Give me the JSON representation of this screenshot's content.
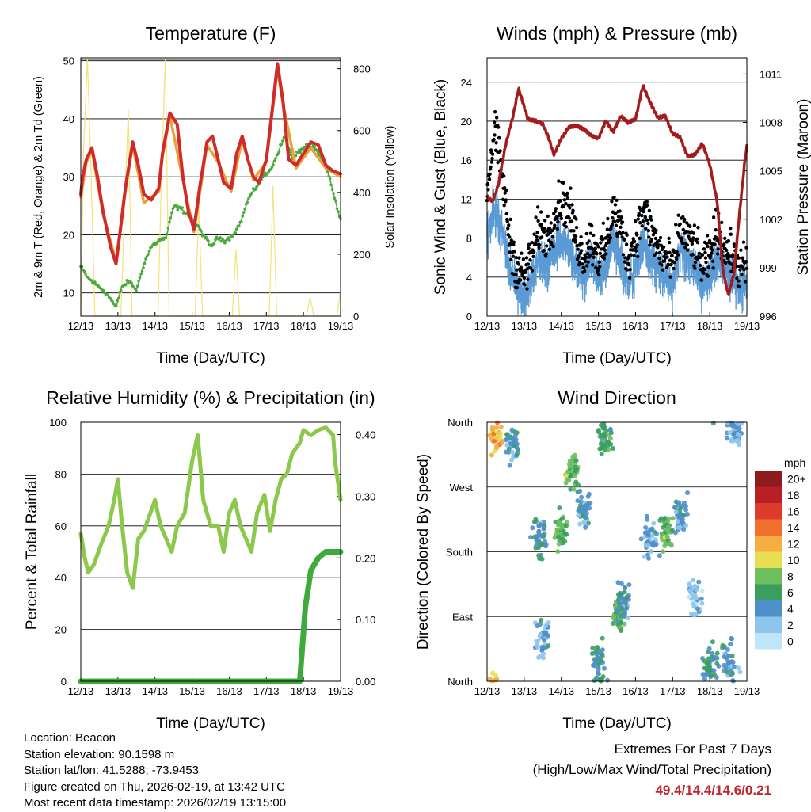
{
  "station": {
    "location": "Location: Beacon",
    "elevation": "Station elevation: 90.1598 m",
    "latlon": "Station lat/lon: 41.5288; -73.9453",
    "created": "Figure created on Thu, 2026-02-19, at 13:42 UTC",
    "latest": "Most recent data timestamp: 2026/02/19 13:15:00"
  },
  "extremes": {
    "title": "Extremes For Past 7 Days",
    "subtitle": "(High/Low/Max Wind/Total Precipitation)",
    "values": "49.4/14.4/14.6/0.21"
  },
  "colors": {
    "temp2m": "#e8a23a",
    "temp9m": "#d12a2a",
    "dewpoint": "#4aaa3c",
    "solar": "#f4e27a",
    "gust": "#000000",
    "wind": "#5b9bd5",
    "pressure": "#a21c1c",
    "rh": "#8cc84b",
    "rain": "#3faa3c"
  },
  "chart_data": [
    {
      "type": "line",
      "title": "Temperature (F)",
      "xlabel": "Time (Day/UTC)",
      "ylabel": "2m & 9m T (Red, Orange) & 2m Td (Green)",
      "y2label": "Solar Insolation (Yellow)",
      "x_ticks": [
        "12/13",
        "13/13",
        "14/13",
        "15/13",
        "16/13",
        "17/13",
        "18/13",
        "19/13"
      ],
      "ylim": [
        6,
        50.5
      ],
      "y_ticks": [
        10,
        20,
        30,
        40,
        50
      ],
      "y2lim": [
        0,
        835
      ],
      "y2_ticks": [
        0,
        200,
        400,
        600,
        800
      ],
      "series": [
        {
          "name": "9m T",
          "axis": "left",
          "x": [
            0,
            0.05,
            0.15,
            0.3,
            0.45,
            0.6,
            0.8,
            0.95,
            1.05,
            1.2,
            1.4,
            1.55,
            1.7,
            1.9,
            2.1,
            2.2,
            2.4,
            2.6,
            2.75,
            2.9,
            3.05,
            3.2,
            3.4,
            3.55,
            3.7,
            3.85,
            4.05,
            4.2,
            4.35,
            4.5,
            4.65,
            4.8,
            5.0,
            5.15,
            5.3,
            5.45,
            5.6,
            5.8,
            6.0,
            6.2,
            6.4,
            6.6,
            6.8,
            7.0
          ],
          "values": [
            27,
            30,
            33,
            35,
            30,
            24,
            18,
            15,
            20,
            28,
            36,
            32,
            27,
            26,
            28,
            34,
            41,
            39,
            30,
            24,
            21,
            28,
            36,
            37,
            33,
            29,
            28,
            34,
            37,
            33,
            30,
            29,
            33,
            41,
            49.5,
            43,
            33,
            32,
            34,
            36,
            35.5,
            32,
            31,
            30.5
          ]
        },
        {
          "name": "2m T",
          "axis": "left",
          "x": [
            0,
            0.15,
            0.3,
            0.6,
            0.95,
            1.2,
            1.4,
            1.7,
            2.1,
            2.2,
            2.4,
            2.75,
            3.05,
            3.4,
            3.7,
            4.05,
            4.35,
            4.65,
            5.0,
            5.3,
            5.45,
            5.8,
            6.2,
            6.6,
            7.0
          ],
          "values": [
            26.5,
            32.5,
            34.5,
            23.5,
            15.5,
            27.5,
            35.5,
            25.5,
            27.5,
            33.5,
            40.5,
            29.5,
            20.5,
            35.5,
            32.5,
            27.5,
            36.5,
            29.5,
            32.5,
            48.5,
            42.5,
            31.5,
            35,
            31.5,
            30
          ]
        },
        {
          "name": "2m Td",
          "axis": "left",
          "x": [
            0,
            0.2,
            0.4,
            0.6,
            0.8,
            0.95,
            1.1,
            1.3,
            1.5,
            1.7,
            1.9,
            2.1,
            2.3,
            2.5,
            2.7,
            2.9,
            3.1,
            3.3,
            3.5,
            3.7,
            3.9,
            4.1,
            4.3,
            4.5,
            4.7,
            4.9,
            5.1,
            5.3,
            5.5,
            5.7,
            5.9,
            6.1,
            6.3,
            6.5,
            6.7,
            6.85,
            7.0
          ],
          "values": [
            14.5,
            12.5,
            11.5,
            10.5,
            9,
            7.5,
            11,
            12,
            10.5,
            15,
            18,
            19,
            19.5,
            25,
            24.5,
            23.5,
            22,
            20,
            18,
            19.5,
            19,
            20,
            22,
            26,
            28,
            30,
            31,
            34,
            37,
            33,
            34.5,
            35.5,
            35,
            33,
            30,
            26,
            22.5
          ]
        },
        {
          "name": "Solar Insolation",
          "axis": "right",
          "x": [
            0,
            0.08,
            0.18,
            0.28,
            0.38,
            1.08,
            1.18,
            1.28,
            1.38,
            2.08,
            2.18,
            2.28,
            2.38,
            3.08,
            3.18,
            3.28,
            4.08,
            4.18,
            4.28,
            5.08,
            5.18,
            5.28,
            6.08,
            6.18,
            6.28,
            6.9,
            7.0
          ],
          "values": [
            0,
            550,
            830,
            450,
            0,
            0,
            350,
            665,
            0,
            0,
            480,
            835,
            0,
            0,
            355,
            0,
            0,
            215,
            0,
            0,
            420,
            0,
            0,
            60,
            0,
            0,
            80
          ]
        }
      ]
    },
    {
      "type": "line",
      "title": "Winds (mph) & Pressure (mb)",
      "xlabel": "Time (Day/UTC)",
      "ylabel": "Sonic Wind & Gust (Blue, Black)",
      "y2label": "Station Pressure (Maroon)",
      "x_ticks": [
        "12/13",
        "13/13",
        "14/13",
        "15/13",
        "16/13",
        "17/13",
        "18/13",
        "19/13"
      ],
      "ylim": [
        0,
        26.5
      ],
      "y_ticks": [
        0,
        4,
        8,
        12,
        16,
        20,
        24
      ],
      "y2lim": [
        996,
        1012
      ],
      "y2_ticks": [
        996,
        999,
        1002,
        1005,
        1008,
        1011
      ],
      "series": [
        {
          "name": "Station Pressure",
          "axis": "right",
          "x": [
            0,
            0.15,
            0.3,
            0.5,
            0.7,
            0.85,
            1.1,
            1.3,
            1.5,
            1.65,
            1.8,
            2.0,
            2.2,
            2.4,
            2.6,
            2.8,
            3.0,
            3.2,
            3.4,
            3.6,
            3.8,
            4.0,
            4.2,
            4.4,
            4.6,
            4.8,
            5.0,
            5.2,
            5.4,
            5.6,
            5.8,
            6.0,
            6.2,
            6.35,
            6.5,
            6.65,
            6.8,
            6.95,
            7.0
          ],
          "values": [
            1003.4,
            1003.1,
            1004.1,
            1006.6,
            1008.4,
            1010.1,
            1008.2,
            1008.1,
            1007.9,
            1007.1,
            1006.0,
            1007.0,
            1007.7,
            1007.8,
            1007.6,
            1007.2,
            1007.0,
            1008.1,
            1007.4,
            1008.4,
            1008.0,
            1008.2,
            1010.3,
            1009.2,
            1008.3,
            1008.4,
            1007.3,
            1007.1,
            1005.9,
            1006.0,
            1006.7,
            1005.4,
            1003.1,
            998.9,
            997.3,
            998.6,
            1002.3,
            1005.7,
            1006.5
          ]
        },
        {
          "name": "Sonic Wind (mean)",
          "axis": "left",
          "x": [
            0,
            0.2,
            0.4,
            0.6,
            0.8,
            1.0,
            1.2,
            1.4,
            1.6,
            1.8,
            2.0,
            2.2,
            2.4,
            2.6,
            2.8,
            3.0,
            3.2,
            3.4,
            3.6,
            3.8,
            4.0,
            4.2,
            4.4,
            4.6,
            4.8,
            5.0,
            5.2,
            5.4,
            5.6,
            5.8,
            6.0,
            6.2,
            6.4,
            6.6,
            6.8,
            7.0
          ],
          "values": [
            8,
            11,
            9,
            5,
            3,
            2,
            4,
            6,
            5,
            7,
            8,
            7,
            5,
            4,
            6,
            4,
            5,
            8,
            6,
            3,
            5,
            8,
            6,
            5,
            4,
            3,
            7,
            6,
            5,
            3,
            4,
            6,
            5,
            4,
            3,
            3
          ]
        },
        {
          "name": "Gust (mean)",
          "axis": "left",
          "x": [
            0,
            0.2,
            0.4,
            0.6,
            0.8,
            1.0,
            1.2,
            1.4,
            1.6,
            1.8,
            2.0,
            2.2,
            2.4,
            2.6,
            2.8,
            3.0,
            3.2,
            3.4,
            3.6,
            3.8,
            4.0,
            4.2,
            4.4,
            4.6,
            4.8,
            5.0,
            5.2,
            5.4,
            5.6,
            5.8,
            6.0,
            6.2,
            6.4,
            6.6,
            6.8,
            7.0
          ],
          "values": [
            13,
            19,
            15,
            8,
            5,
            4,
            6,
            9,
            8,
            10,
            12,
            11,
            8,
            6,
            8,
            6,
            7,
            11,
            9,
            6,
            8,
            11,
            9,
            7,
            6,
            5,
            9,
            8,
            7,
            5,
            6,
            9,
            7,
            6,
            5,
            5
          ]
        }
      ]
    },
    {
      "type": "line",
      "title": "Relative Humidity (%) & Precipitation (in)",
      "xlabel": "Time (Day/UTC)",
      "ylabel": "Percent & Total Rainfall",
      "x_ticks": [
        "12/13",
        "13/13",
        "14/13",
        "15/13",
        "16/13",
        "17/13",
        "18/13",
        "19/13"
      ],
      "ylim": [
        0,
        100
      ],
      "y_ticks": [
        0,
        20,
        40,
        60,
        80,
        100
      ],
      "y2lim": [
        0,
        0.42
      ],
      "y2_ticks": [
        "0.00",
        "0.10",
        "0.20",
        "0.30",
        "0.40"
      ],
      "series": [
        {
          "name": "Relative Humidity",
          "axis": "left",
          "x": [
            0,
            0.1,
            0.2,
            0.35,
            0.55,
            0.75,
            0.9,
            1.0,
            1.1,
            1.25,
            1.4,
            1.55,
            1.7,
            1.85,
            2.0,
            2.15,
            2.3,
            2.45,
            2.6,
            2.8,
            3.0,
            3.15,
            3.3,
            3.5,
            3.7,
            3.85,
            4.0,
            4.15,
            4.3,
            4.45,
            4.6,
            4.75,
            4.95,
            5.1,
            5.25,
            5.4,
            5.55,
            5.7,
            5.9,
            6.0,
            6.2,
            6.4,
            6.6,
            6.8,
            6.85,
            6.9,
            7.0
          ],
          "values": [
            57,
            48,
            42,
            45,
            53,
            60,
            70,
            78,
            62,
            42,
            36,
            55,
            58,
            64,
            70,
            60,
            55,
            50,
            60,
            65,
            85,
            95,
            70,
            60,
            60,
            50,
            65,
            70,
            60,
            55,
            50,
            65,
            72,
            58,
            70,
            78,
            80,
            88,
            92,
            97,
            95,
            97,
            98,
            95,
            85,
            80,
            70
          ]
        },
        {
          "name": "Total Precipitation",
          "axis": "right",
          "x": [
            0,
            5.9,
            6.05,
            6.2,
            6.4,
            6.6,
            7.0
          ],
          "values": [
            0,
            0,
            0.12,
            0.18,
            0.2,
            0.21,
            0.21
          ]
        }
      ]
    },
    {
      "type": "scatter",
      "title": "Wind Direction",
      "xlabel": "Time (Day/UTC)",
      "ylabel": "Direction (Colored By Speed)",
      "x_ticks": [
        "12/13",
        "13/13",
        "14/13",
        "15/13",
        "16/13",
        "17/13",
        "18/13",
        "19/13"
      ],
      "ylim": [
        0,
        360
      ],
      "y_ticks": [
        "North",
        "East",
        "South",
        "West",
        "North"
      ],
      "legend_title": "mph",
      "legend_labels": [
        "20+",
        "18",
        "16",
        "14",
        "12",
        "10",
        "8",
        "6",
        "4",
        "2",
        "0"
      ],
      "clusters": [
        {
          "x": 0.2,
          "dir": 345,
          "speed": 12
        },
        {
          "x": 0.7,
          "dir": 330,
          "speed": 4
        },
        {
          "x": 1.4,
          "dir": 200,
          "speed": 5
        },
        {
          "x": 1.5,
          "dir": 60,
          "speed": 3
        },
        {
          "x": 2.0,
          "dir": 210,
          "speed": 7
        },
        {
          "x": 2.3,
          "dir": 290,
          "speed": 8
        },
        {
          "x": 2.6,
          "dir": 240,
          "speed": 4
        },
        {
          "x": 3.0,
          "dir": 25,
          "speed": 5
        },
        {
          "x": 3.2,
          "dir": 340,
          "speed": 6
        },
        {
          "x": 3.55,
          "dir": 90,
          "speed": 7
        },
        {
          "x": 3.7,
          "dir": 110,
          "speed": 4
        },
        {
          "x": 4.4,
          "dir": 200,
          "speed": 3
        },
        {
          "x": 4.8,
          "dir": 210,
          "speed": 7
        },
        {
          "x": 5.2,
          "dir": 230,
          "speed": 4
        },
        {
          "x": 5.6,
          "dir": 120,
          "speed": 2
        },
        {
          "x": 6.0,
          "dir": 20,
          "speed": 5
        },
        {
          "x": 6.5,
          "dir": 30,
          "speed": 4
        },
        {
          "x": 6.7,
          "dir": 350,
          "speed": 3
        }
      ]
    }
  ]
}
